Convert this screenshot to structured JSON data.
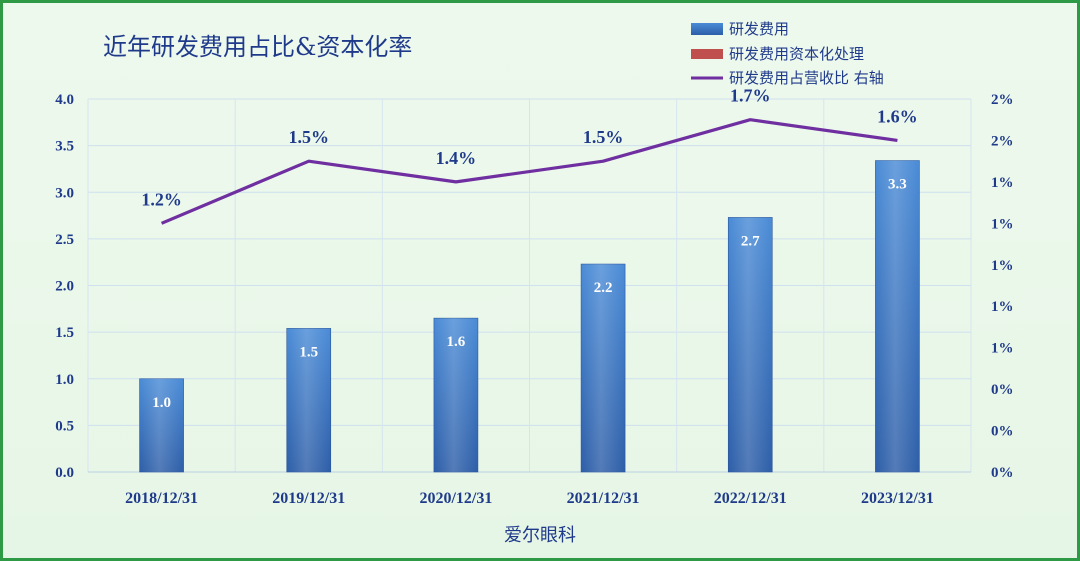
{
  "chart_data": {
    "type": "bar",
    "title": "近年研发费用占比&资本化率",
    "xlabel": "爱尔眼科",
    "categories": [
      "2018/12/31",
      "2019/12/31",
      "2020/12/31",
      "2021/12/31",
      "2022/12/31",
      "2023/12/31"
    ],
    "series": [
      {
        "name": "研发费用",
        "kind": "bar",
        "axis": "left",
        "color": "#3a78c4",
        "values": [
          1.0,
          1.54,
          1.65,
          2.23,
          2.73,
          3.34
        ],
        "labels": [
          "1.0",
          "1.5",
          "1.6",
          "2.2",
          "2.7",
          "3.3"
        ]
      },
      {
        "name": "研发费用资本化处理",
        "kind": "bar",
        "axis": "left",
        "color": "#c0504d",
        "values": [
          0,
          0,
          0,
          0,
          0,
          0
        ]
      },
      {
        "name": "研发费用占营收比 右轴",
        "kind": "line",
        "axis": "right",
        "color": "#6f2fa0",
        "values": [
          1.2,
          1.5,
          1.4,
          1.5,
          1.7,
          1.6
        ],
        "labels": [
          "1.2%",
          "1.5%",
          "1.4%",
          "1.5%",
          "1.7%",
          "1.6%"
        ]
      }
    ],
    "y_left": {
      "range": [
        0,
        4.0
      ],
      "ticks": [
        "0.0",
        "0.5",
        "1.0",
        "1.5",
        "2.0",
        "2.5",
        "3.0",
        "3.5",
        "4.0"
      ]
    },
    "y_right": {
      "range": [
        0,
        1.8
      ],
      "ticks": [
        "0%",
        "0%",
        "0%",
        "1%",
        "1%",
        "1%",
        "1%",
        "1%",
        "2%",
        "2%"
      ]
    },
    "grid": true,
    "legend_position": "top-right"
  }
}
